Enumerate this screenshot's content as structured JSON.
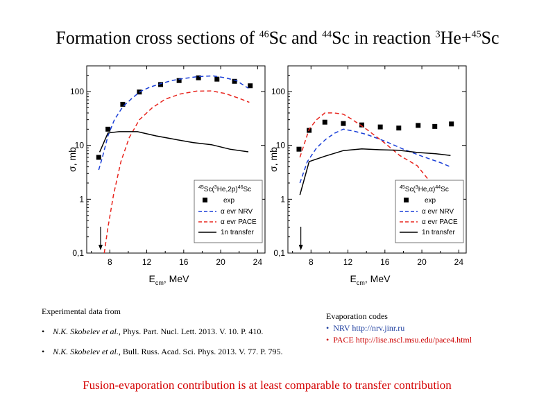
{
  "title": {
    "prefix": "Formation cross sections of ",
    "sup1": "46",
    "part2": "Sc and ",
    "sup2": "44",
    "part3": "Sc in reaction ",
    "sup3": "3",
    "part4": "He+",
    "sup4": "45",
    "part5": "Sc"
  },
  "chart_data": [
    {
      "type": "scatter",
      "xlabel": "E_cm, MeV",
      "ylabel": "σ, mb",
      "yscale": "log",
      "xlim": [
        5.5,
        24.8
      ],
      "ylim": [
        0.1,
        300
      ],
      "xticks": [
        8,
        12,
        16,
        20,
        24
      ],
      "yticks": [
        0.1,
        1,
        10,
        100
      ],
      "ytick_labels": [
        "0,1",
        "1",
        "10",
        "100"
      ],
      "legend_title": "45Sc(3He,2p)46Sc",
      "legend": [
        "exp",
        "α evr NRV",
        "α evr PACE",
        "1n transfer"
      ],
      "arrow_x": 7.0,
      "series": [
        {
          "name": "exp",
          "style": "marker",
          "x": [
            6.8,
            7.8,
            9.4,
            11.2,
            13.5,
            15.5,
            17.6,
            19.6,
            21.5,
            23.2
          ],
          "y": [
            6,
            20,
            58,
            98,
            135,
            160,
            180,
            170,
            155,
            128
          ]
        },
        {
          "name": "α evr NRV",
          "style": "dashed-blue",
          "x": [
            6.8,
            7.2,
            7.8,
            8.5,
            9.4,
            10.4,
            11.3,
            12.3,
            13.5,
            14.7,
            16.0,
            17.6,
            19.2,
            20.5,
            21.7,
            23.0
          ],
          "y": [
            3.5,
            6,
            15,
            30,
            52,
            75,
            100,
            120,
            140,
            160,
            175,
            190,
            195,
            180,
            160,
            115
          ]
        },
        {
          "name": "α evr PACE",
          "style": "dashed-red",
          "x": [
            7.4,
            7.8,
            8.4,
            9.2,
            10.1,
            11.2,
            12.6,
            14.0,
            15.6,
            17.4,
            19.0,
            20.5,
            22.0,
            23.1
          ],
          "y": [
            0.1,
            0.3,
            1.2,
            5,
            14,
            30,
            50,
            72,
            90,
            102,
            103,
            92,
            75,
            63
          ]
        },
        {
          "name": "1n transfer",
          "style": "solid-black",
          "x": [
            6.9,
            7.8,
            9.0,
            11.0,
            13.0,
            15.0,
            17.0,
            19.0,
            21.0,
            23.0
          ],
          "y": [
            7.5,
            17,
            18,
            18,
            15,
            13,
            11.3,
            10.3,
            8.5,
            7.6
          ]
        }
      ]
    },
    {
      "type": "scatter",
      "xlabel": "E_cm, MeV",
      "ylabel": "σ, mb",
      "yscale": "log",
      "xlim": [
        5.5,
        24.8
      ],
      "ylim": [
        0.1,
        300
      ],
      "xticks": [
        8,
        12,
        16,
        20,
        24
      ],
      "yticks": [
        0.1,
        1,
        10,
        100
      ],
      "ytick_labels": [
        "0,1",
        "1",
        "10",
        "100"
      ],
      "legend_title": "45Sc(3He,α)44Sc",
      "legend": [
        "exp",
        "α evr NRV",
        "α evr PACE",
        "1n transfer"
      ],
      "arrow_x": 6.9,
      "series": [
        {
          "name": "exp",
          "style": "marker",
          "x": [
            6.7,
            7.8,
            9.5,
            11.5,
            13.5,
            15.5,
            17.5,
            19.6,
            21.4,
            23.2
          ],
          "y": [
            8.5,
            19,
            27,
            25.5,
            24,
            22,
            21,
            23.5,
            22.5,
            25
          ]
        },
        {
          "name": "α evr NRV",
          "style": "dashed-blue",
          "x": [
            6.8,
            7.6,
            8.6,
            9.6,
            10.6,
            11.5,
            12.6,
            14.0,
            16.0,
            18.0,
            20.0,
            22.0,
            23.1
          ],
          "y": [
            2,
            5,
            9,
            13,
            17,
            20,
            18.5,
            16,
            12,
            8.5,
            6.3,
            4.8,
            4
          ]
        },
        {
          "name": "α evr PACE",
          "style": "dashed-red",
          "x": [
            6.8,
            7.8,
            8.6,
            9.5,
            10.5,
            11.5,
            12.5,
            14.0,
            16.0,
            17.6,
            19.5,
            21.0,
            22.3,
            23.1
          ],
          "y": [
            6,
            20,
            30,
            40,
            40,
            38,
            30,
            20,
            11,
            6.5,
            4.2,
            2,
            0.8,
            0.45
          ]
        },
        {
          "name": "1n transfer",
          "style": "solid-black",
          "x": [
            6.8,
            7.8,
            9.5,
            11.5,
            13.5,
            15.5,
            17.5,
            19.5,
            21.5,
            23.1
          ],
          "y": [
            1.2,
            5,
            6.3,
            8,
            8.6,
            8.3,
            8.1,
            7.4,
            7,
            6.5
          ]
        }
      ]
    }
  ],
  "references": {
    "heading": "Experimental  data from",
    "items": [
      {
        "authors": "N.K. Skobelev et al.",
        "rest": ", Phys. Part. Nucl. Lett. 2013. V. 10. P. 410."
      },
      {
        "authors": "N.K. Skobelev et al.",
        "rest": ", Bull.  Russ. Acad. Sci. Phys. 2013. V. 77. P. 795."
      }
    ]
  },
  "evaporation": {
    "heading": "Evaporation codes",
    "nrv": "NRV http://nrv.jinr.ru",
    "pace": "PACE http://lise.nscl.msu.edu/pace4.html"
  },
  "conclusion": "Fusion-evaporation contribution is at least comparable to transfer contribution",
  "colors": {
    "blue": "#1f3f9f",
    "red": "#cc0000",
    "nrv_line": "#1a3fd8",
    "pace_line": "#e8261f"
  }
}
